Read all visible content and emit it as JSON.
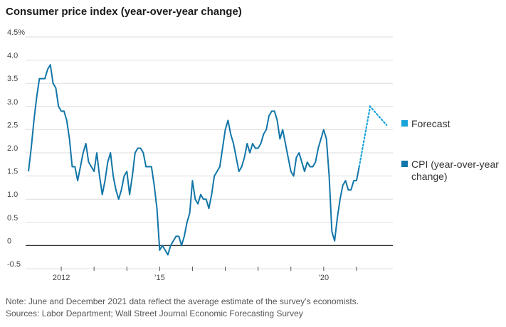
{
  "title": "Consumer price index (year-over-year change)",
  "note": "Note: June and December 2021 data reflect the average estimate of the survey’s economists.",
  "sources": "Sources: Labor Department; Wall Street Journal Economic Forecasting Survey",
  "colors": {
    "cpi": "#1276a8",
    "forecast": "#1aa3d9",
    "grid": "#dddddd",
    "zero": "#333333"
  },
  "chart_data": {
    "type": "line",
    "ylim": [
      -0.5,
      4.5
    ],
    "xlim": [
      2011.0,
      2022.0
    ],
    "y_ticks": [
      {
        "value": 4.5,
        "label": "4.5%"
      },
      {
        "value": 4.0,
        "label": "4.0"
      },
      {
        "value": 3.5,
        "label": "3.5"
      },
      {
        "value": 3.0,
        "label": "3.0"
      },
      {
        "value": 2.5,
        "label": "2.5"
      },
      {
        "value": 2.0,
        "label": "2.0"
      },
      {
        "value": 1.5,
        "label": "1.5"
      },
      {
        "value": 1.0,
        "label": "1.0"
      },
      {
        "value": 0.5,
        "label": "0.5"
      },
      {
        "value": 0.0,
        "label": "0"
      },
      {
        "value": -0.5,
        "label": "-0.5"
      }
    ],
    "x_ticks": [
      {
        "value": 2012,
        "label": "2012"
      },
      {
        "value": 2013,
        "label": ""
      },
      {
        "value": 2014,
        "label": ""
      },
      {
        "value": 2015,
        "label": "’15"
      },
      {
        "value": 2016,
        "label": ""
      },
      {
        "value": 2017,
        "label": ""
      },
      {
        "value": 2018,
        "label": ""
      },
      {
        "value": 2019,
        "label": ""
      },
      {
        "value": 2020,
        "label": "’20"
      },
      {
        "value": 2021,
        "label": ""
      }
    ],
    "grid": true,
    "legend_position": "right",
    "series": [
      {
        "name": "CPI (year-over-year change)",
        "style": "solid",
        "start": "2011-01",
        "frequency": "monthly",
        "values": [
          1.6,
          2.1,
          2.7,
          3.2,
          3.6,
          3.6,
          3.6,
          3.8,
          3.9,
          3.5,
          3.4,
          3.0,
          2.9,
          2.9,
          2.7,
          2.3,
          1.7,
          1.7,
          1.4,
          1.7,
          2.0,
          2.2,
          1.8,
          1.7,
          1.6,
          2.0,
          1.5,
          1.1,
          1.4,
          1.8,
          2.0,
          1.5,
          1.2,
          1.0,
          1.2,
          1.5,
          1.6,
          1.1,
          1.5,
          2.0,
          2.1,
          2.1,
          2.0,
          1.7,
          1.7,
          1.7,
          1.3,
          0.8,
          -0.1,
          0.0,
          -0.1,
          -0.2,
          0.0,
          0.1,
          0.2,
          0.2,
          0.0,
          0.2,
          0.5,
          0.7,
          1.4,
          1.0,
          0.9,
          1.1,
          1.0,
          1.0,
          0.8,
          1.1,
          1.5,
          1.6,
          1.7,
          2.1,
          2.5,
          2.7,
          2.4,
          2.2,
          1.9,
          1.6,
          1.7,
          1.9,
          2.2,
          2.0,
          2.2,
          2.1,
          2.1,
          2.2,
          2.4,
          2.5,
          2.8,
          2.9,
          2.9,
          2.7,
          2.3,
          2.5,
          2.2,
          1.9,
          1.6,
          1.5,
          1.9,
          2.0,
          1.8,
          1.6,
          1.8,
          1.7,
          1.7,
          1.8,
          2.1,
          2.3,
          2.5,
          2.3,
          1.5,
          0.3,
          0.1,
          0.6,
          1.0,
          1.3,
          1.4,
          1.2,
          1.2,
          1.4,
          1.4,
          1.7
        ]
      },
      {
        "name": "Forecast",
        "style": "dotted",
        "points": [
          {
            "x": "2021-02",
            "y": 1.7
          },
          {
            "x": "2021-06",
            "y": 3.0
          },
          {
            "x": "2021-12",
            "y": 2.6
          }
        ]
      }
    ],
    "legend": [
      {
        "label": "Forecast",
        "color": "#1aa3d9"
      },
      {
        "label": "CPI (year-over-year change)",
        "color": "#1276a8"
      }
    ]
  }
}
